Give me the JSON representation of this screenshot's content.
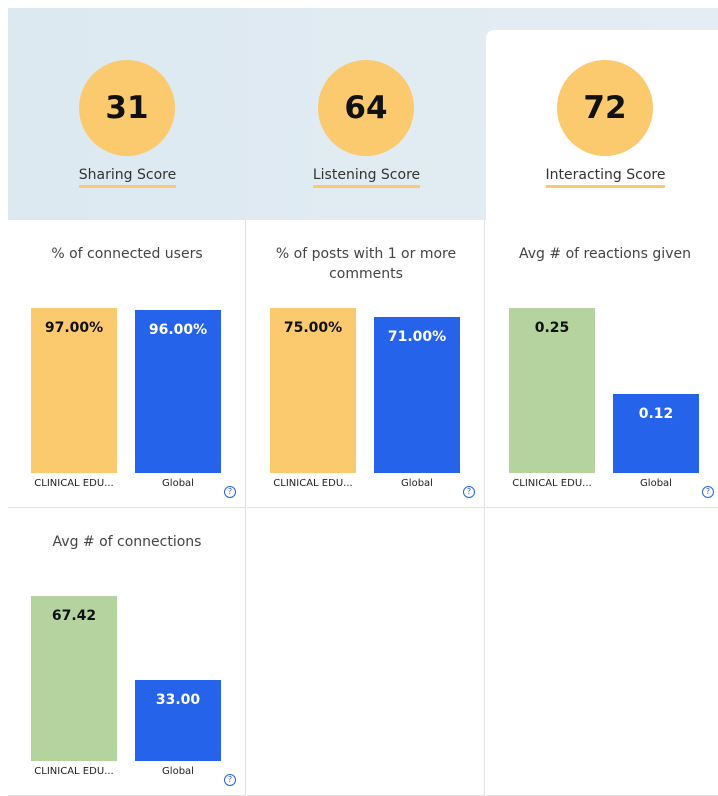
{
  "scores": [
    {
      "value": 31,
      "label": "Sharing Score"
    },
    {
      "value": 64,
      "label": "Listening Score"
    },
    {
      "value": 72,
      "label": "Interacting Score"
    }
  ],
  "selected_score": 2,
  "chart_data": [
    {
      "type": "bar",
      "title": "% of connected users",
      "categories": [
        "CLINICAL EDU...",
        "Global"
      ],
      "values": [
        97,
        96
      ],
      "value_labels": [
        "97.00%",
        "96.00%"
      ],
      "colors": [
        "#fbc96e",
        "#2563eb"
      ]
    },
    {
      "type": "bar",
      "title": "% of posts with 1 or more comments",
      "categories": [
        "CLINICAL EDU...",
        "Global"
      ],
      "values": [
        75,
        71
      ],
      "value_labels": [
        "75.00%",
        "71.00%"
      ],
      "colors": [
        "#fbc96e",
        "#2563eb"
      ]
    },
    {
      "type": "bar",
      "title": "Avg # of reactions given",
      "categories": [
        "CLINICAL EDU...",
        "Global"
      ],
      "values": [
        0.25,
        0.12
      ],
      "colors": [
        "#b5d39e",
        "#2563eb"
      ]
    },
    {
      "type": "bar",
      "title": "Avg # of connections",
      "categories": [
        "CLINICAL EDU...",
        "Global"
      ],
      "values": [
        67.42,
        33
      ],
      "value_labels": [
        "67.42",
        "33.00"
      ],
      "colors": [
        "#b5d39e",
        "#2563eb"
      ]
    }
  ]
}
